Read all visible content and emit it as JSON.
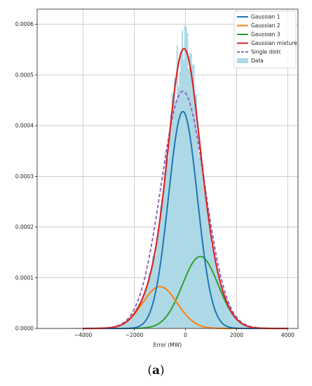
{
  "chart_data": {
    "type": "histogram-with-density-curves",
    "title": "",
    "xlabel": "Error (MW)",
    "ylabel": "",
    "xlim": [
      -5800,
      4400
    ],
    "ylim": [
      0,
      0.00063
    ],
    "x_ticks": [
      -4000,
      -2000,
      0,
      2000,
      4000
    ],
    "x_tick_labels": [
      "−4000",
      "−2000",
      "0",
      "2000",
      "4000"
    ],
    "y_ticks": [
      0,
      0.0001,
      0.0002,
      0.0003,
      0.0004,
      0.0005,
      0.0006
    ],
    "y_tick_labels": [
      "0.0000",
      "0.0001",
      "0.0002",
      "0.0003",
      "0.0004",
      "0.0005",
      "0.0006"
    ],
    "grid": true,
    "legend_position": "top-right",
    "series": [
      {
        "name": "Gaussian 1",
        "kind": "gaussian",
        "color": "#1f77b4",
        "mean": -100,
        "sd": 565,
        "weight": 0.607,
        "peak": 0.000428
      },
      {
        "name": "Gaussian 2",
        "kind": "gaussian",
        "color": "#ff7f0e",
        "mean": -1000,
        "sd": 680,
        "weight": 0.141,
        "peak": 8.25e-05
      },
      {
        "name": "Gaussian 3",
        "kind": "gaussian",
        "color": "#2ca02c",
        "mean": 580,
        "sd": 700,
        "weight": 0.248,
        "peak": 0.000142
      },
      {
        "name": "Gaussian mixture",
        "kind": "sum",
        "color": "#d62728"
      },
      {
        "name": "Single distr.",
        "kind": "gaussian",
        "color": "#9467bd",
        "dashed": true,
        "mean": -100,
        "sd": 850,
        "weight": 1.0,
        "peak": 0.000468
      }
    ],
    "histogram": {
      "name": "Data",
      "color": "#add8e6",
      "bin_width": 50,
      "range": [
        -5500,
        3800
      ],
      "note_peak": 0.0006
    }
  },
  "caption": {
    "open": "(",
    "label": "a",
    "close": ")"
  }
}
